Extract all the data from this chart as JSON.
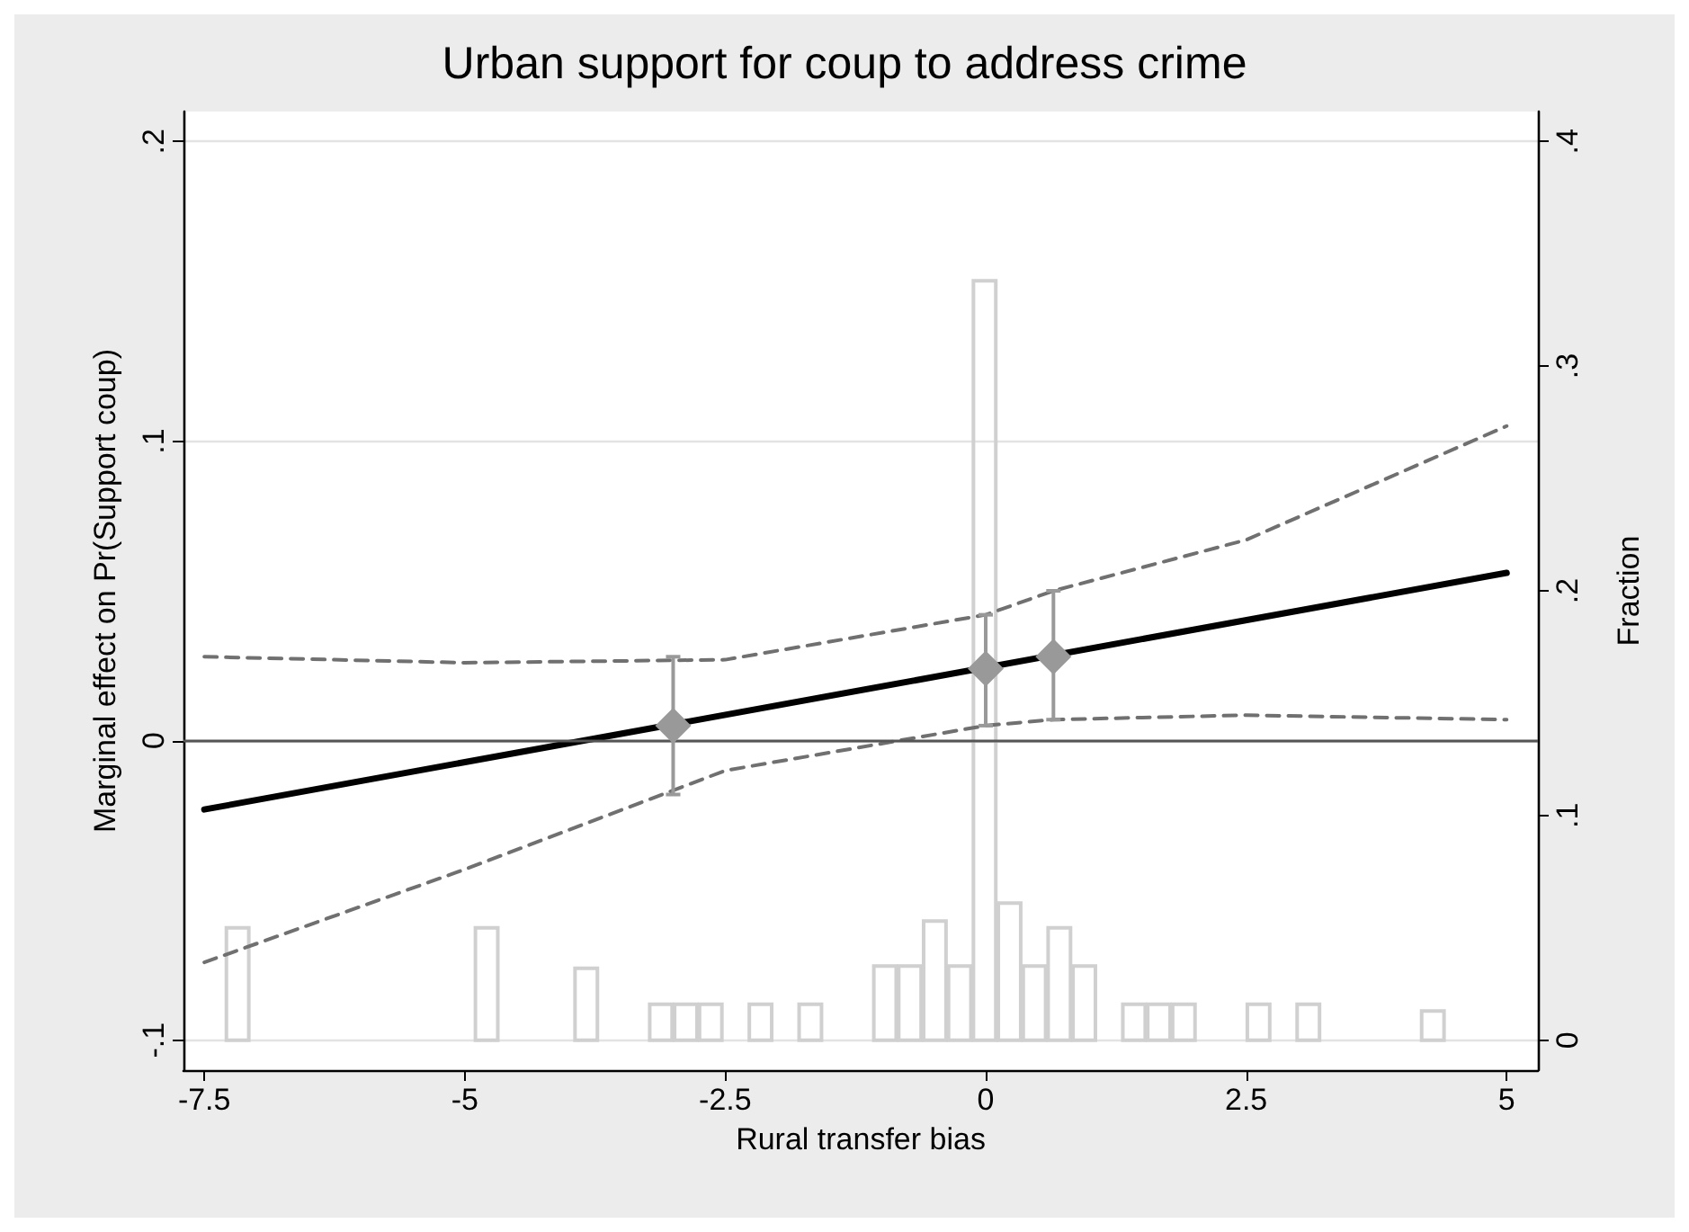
{
  "chart_data": {
    "type": "line",
    "title": "Urban support for coup to address crime",
    "xlabel": "Rural transfer bias",
    "ylabel": "Marginal effect on Pr(Support coup)",
    "y2label": "Fraction",
    "xlim": [
      -7.7,
      5.3
    ],
    "xticks": [
      -7.5,
      -5,
      -2.5,
      0,
      2.5,
      5
    ],
    "ylim": [
      -0.11,
      0.21
    ],
    "yticks": [
      {
        "value": -0.1,
        "label": "-.1"
      },
      0,
      {
        "value": 0.1,
        "label": ".1"
      },
      {
        "value": 0.2,
        "label": ".2"
      }
    ],
    "y2lim": [
      -0.0133,
      0.4133
    ],
    "y2ticks": [
      0,
      {
        "value": 0.1,
        "label": ".1"
      },
      {
        "value": 0.2,
        "label": ".2"
      },
      {
        "value": 0.3,
        "label": ".3"
      },
      {
        "value": 0.4,
        "label": ".4"
      }
    ],
    "grid": "y",
    "ref_lines": [
      {
        "axis": "y",
        "value": 0,
        "color": "#555555",
        "line_style": "solid"
      }
    ],
    "series": [
      {
        "type": "histogram",
        "axis": "y2",
        "color": "#d0d0d0",
        "bins": [
          -7.3,
          -7.061,
          -6.822,
          -6.583,
          -6.344,
          -6.105,
          -5.866,
          -5.627,
          -5.388,
          -5.149,
          -4.91,
          -4.671,
          -4.432,
          -4.193,
          -3.954,
          -3.715,
          -3.476,
          -3.237,
          -2.998,
          -2.759,
          -2.52,
          -2.281,
          -2.042,
          -1.803,
          -1.564,
          -1.325,
          -1.086,
          -0.847,
          -0.608,
          -0.369,
          -0.13,
          0.109,
          0.348,
          0.587,
          0.826,
          1.065,
          1.304,
          1.543,
          1.782,
          2.021,
          2.26,
          2.499,
          2.738,
          2.977,
          3.216,
          3.455,
          3.694,
          3.933,
          4.172,
          4.411
        ],
        "values": [
          0.05,
          0,
          0,
          0,
          0,
          0,
          0,
          0,
          0,
          0,
          0.05,
          0,
          0,
          0,
          0.032,
          0,
          0,
          0.016,
          0.016,
          0.016,
          0,
          0.016,
          0,
          0.016,
          0,
          0,
          0.033,
          0.033,
          0.053,
          0.033,
          0.338,
          0.061,
          0.033,
          0.05,
          0.033,
          0,
          0.016,
          0.016,
          0.016,
          0,
          0,
          0.016,
          0,
          0.016,
          0,
          0,
          0,
          0,
          0.013
        ]
      },
      {
        "color": "#707070",
        "line_style": "dashed",
        "marker": "none",
        "x": [
          -7.5,
          -5,
          -2.5,
          0,
          0.65,
          2.5,
          5
        ],
        "values": [
          0.028,
          0.026,
          0.027,
          0.042,
          0.05,
          0.067,
          0.105
        ]
      },
      {
        "color": "#707070",
        "line_style": "dashed",
        "marker": "none",
        "x": [
          -7.5,
          -5,
          -2.5,
          0,
          0.65,
          2.5,
          5
        ],
        "values": [
          -0.074,
          -0.043,
          -0.01,
          0.005,
          0.007,
          0.0085,
          0.007
        ]
      },
      {
        "color": "#000000",
        "line_style": "solid",
        "marker": "none",
        "x": [
          -7.5,
          5
        ],
        "values": [
          -0.023,
          0.056
        ]
      },
      {
        "type": "scatter",
        "color": "#999999",
        "marker": "diamond",
        "x": [
          -3,
          0,
          0.65
        ],
        "values": [
          0.005,
          0.024,
          0.028
        ],
        "errors": [
          [
            -0.018,
            0.028
          ],
          [
            0.005,
            0.042
          ],
          [
            0.007,
            0.05
          ]
        ]
      }
    ]
  }
}
